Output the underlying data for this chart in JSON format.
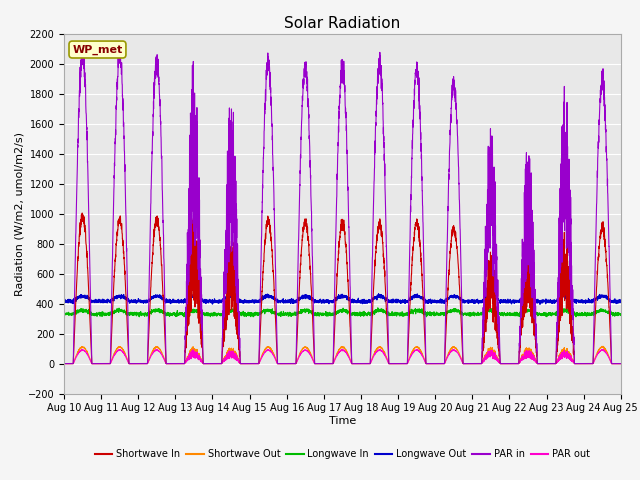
{
  "title": "Solar Radiation",
  "xlabel": "Time",
  "ylabel": "Radiation (W/m2, umol/m2/s)",
  "ylim": [
    -200,
    2200
  ],
  "xlim": [
    0,
    15
  ],
  "x_tick_labels": [
    "Aug 10",
    "Aug 11",
    "Aug 12",
    "Aug 13",
    "Aug 14",
    "Aug 15",
    "Aug 16",
    "Aug 17",
    "Aug 18",
    "Aug 19",
    "Aug 20",
    "Aug 21",
    "Aug 22",
    "Aug 23",
    "Aug 24",
    "Aug 25"
  ],
  "legend_labels": [
    "Shortwave In",
    "Shortwave Out",
    "Longwave In",
    "Longwave Out",
    "PAR in",
    "PAR out"
  ],
  "legend_colors": [
    "#cc0000",
    "#ff8800",
    "#00bb00",
    "#0000cc",
    "#9900cc",
    "#ff00cc"
  ],
  "annotation_text": "WP_met",
  "annotation_color": "#880000",
  "annotation_bg": "#ffffcc",
  "background_color": "#e8e8e8",
  "grid_color": "#ffffff",
  "n_days": 15,
  "shortwave_in_peaks": [
    980,
    950,
    960,
    950,
    870,
    950,
    950,
    940,
    930,
    940,
    900,
    750,
    900,
    900,
    900
  ],
  "par_in_peaks": [
    2060,
    2040,
    2010,
    1980,
    1810,
    2000,
    1980,
    1980,
    2000,
    1960,
    1870,
    1580,
    1460,
    1900,
    1870
  ],
  "longwave_in_base": 330,
  "longwave_out_base": 415,
  "shortwave_out_peak": 110,
  "par_out_peak": 90,
  "title_fontsize": 11,
  "label_fontsize": 8,
  "tick_fontsize": 7
}
